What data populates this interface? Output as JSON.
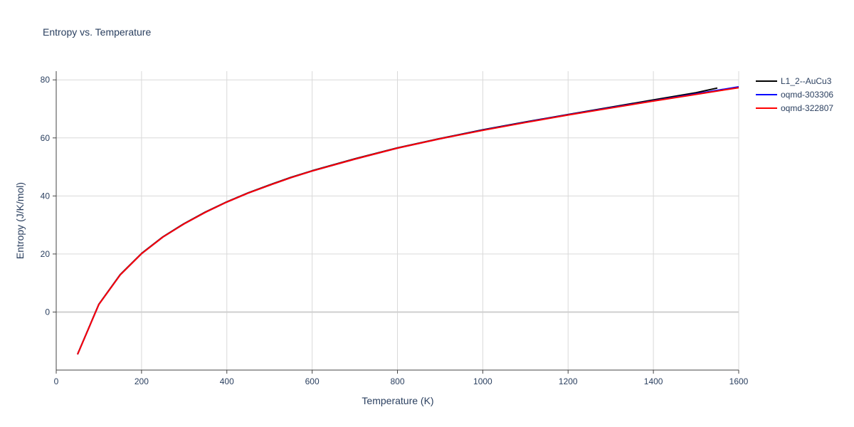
{
  "chart_data": {
    "type": "line",
    "title": "Entropy vs. Temperature",
    "xlabel": "Temperature (K)",
    "ylabel": "Entropy (J/K/mol)",
    "xlim": [
      0,
      1600
    ],
    "ylim": [
      -20,
      83
    ],
    "xticks": [
      0,
      200,
      400,
      600,
      800,
      1000,
      1200,
      1400,
      1600
    ],
    "yticks": [
      0,
      20,
      40,
      60,
      80
    ],
    "grid": true,
    "legend_position": "top-right",
    "series": [
      {
        "name": "L1_2--AuCu3",
        "color": "#000000",
        "x": [
          50,
          100,
          150,
          200,
          250,
          300,
          350,
          400,
          450,
          500,
          550,
          600,
          700,
          800,
          900,
          1000,
          1100,
          1200,
          1300,
          1400,
          1500,
          1550
        ],
        "y": [
          -14.5,
          2.7,
          12.9,
          20.2,
          25.9,
          30.5,
          34.5,
          38.0,
          41.1,
          43.8,
          46.4,
          48.7,
          52.8,
          56.6,
          59.8,
          62.8,
          65.5,
          68.1,
          70.6,
          73.1,
          75.6,
          77.2
        ]
      },
      {
        "name": "oqmd-303306",
        "color": "#0000ff",
        "x": [
          50,
          100,
          150,
          200,
          250,
          300,
          350,
          400,
          450,
          500,
          550,
          600,
          700,
          800,
          900,
          1000,
          1100,
          1200,
          1300,
          1400,
          1500,
          1600
        ],
        "y": [
          -14.6,
          2.6,
          12.8,
          20.1,
          25.8,
          30.4,
          34.4,
          37.9,
          41.0,
          43.7,
          46.3,
          48.6,
          52.7,
          56.5,
          59.7,
          62.7,
          65.4,
          68.0,
          70.4,
          72.8,
          75.2,
          77.6
        ]
      },
      {
        "name": "oqmd-322807",
        "color": "#ff0000",
        "x": [
          50,
          100,
          150,
          200,
          250,
          300,
          350,
          400,
          450,
          500,
          550,
          600,
          700,
          800,
          900,
          1000,
          1100,
          1200,
          1300,
          1400,
          1500,
          1600
        ],
        "y": [
          -14.6,
          2.6,
          12.8,
          20.1,
          25.8,
          30.4,
          34.4,
          37.9,
          41.0,
          43.7,
          46.3,
          48.6,
          52.7,
          56.5,
          59.7,
          62.6,
          65.3,
          67.9,
          70.3,
          72.7,
          75.0,
          77.3
        ]
      }
    ]
  }
}
